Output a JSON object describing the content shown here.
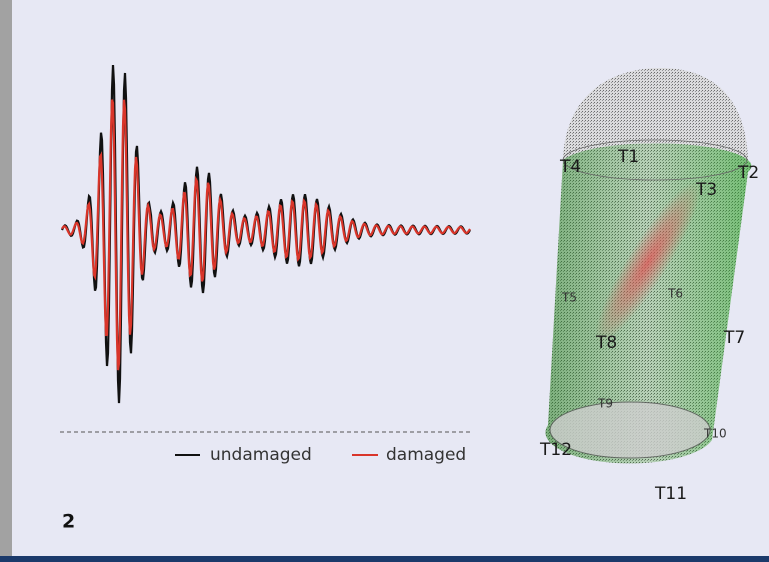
{
  "figure": {
    "number": "2",
    "legend": [
      "undamaged",
      "damaged"
    ],
    "sensors": [
      "T1",
      "T2",
      "T3",
      "T4",
      "T5",
      "T6",
      "T7",
      "T8",
      "T9",
      "T10",
      "T11",
      "T12"
    ]
  }
}
